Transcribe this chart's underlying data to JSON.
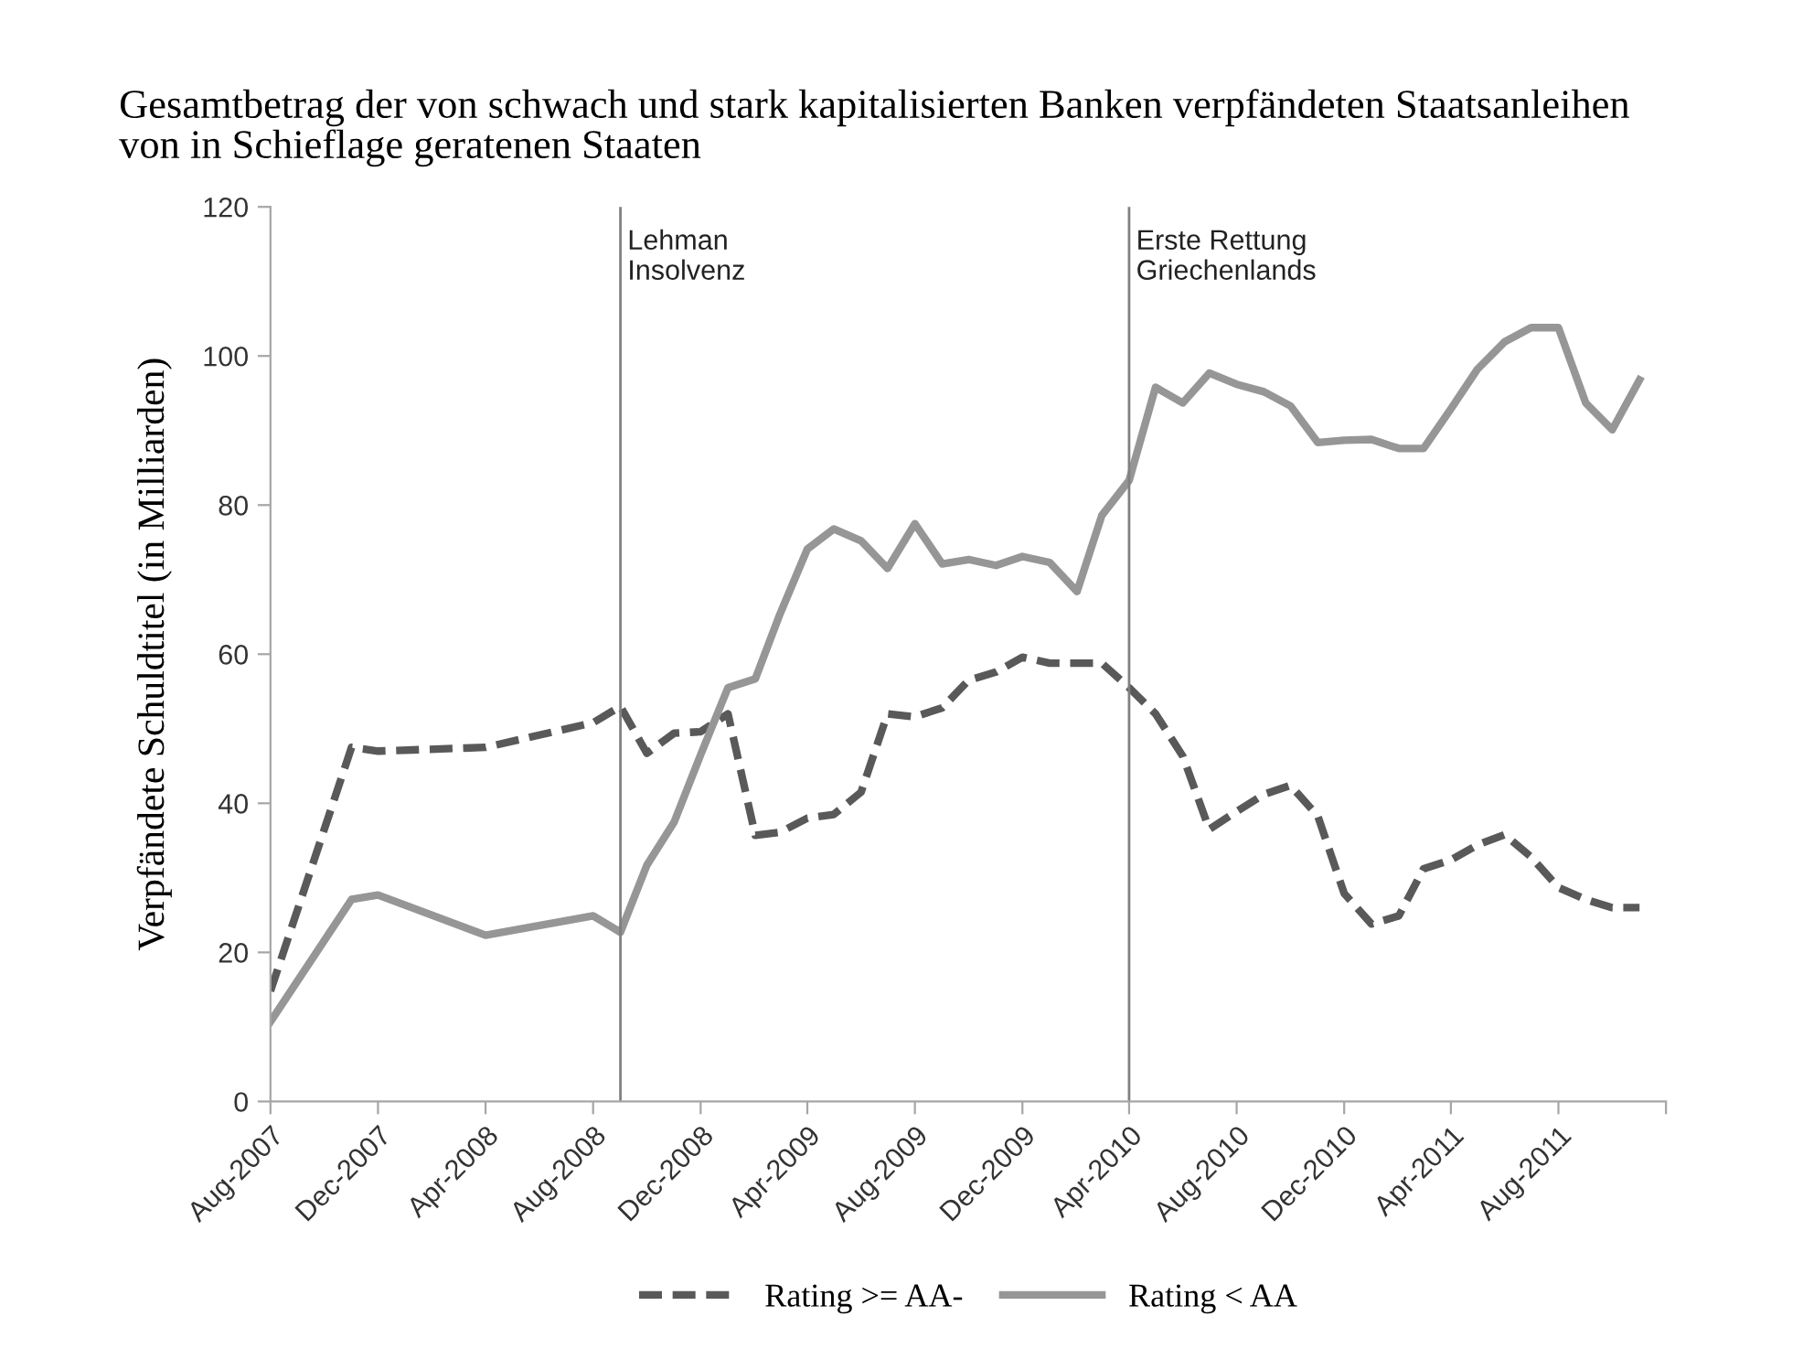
{
  "chart_data": {
    "type": "line",
    "title": "Gesamtbetrag der von schwach und stark kapitalisierten Banken verpfändeten Staatsanleihen\nvon in Schieflage geratenen Staaten",
    "ylabel": "Verpfändete Schuldtitel (in Milliarden)",
    "x": [
      "2007-08",
      "2007-11",
      "2007-12",
      "2008-04",
      "2008-08",
      "2008-09",
      "2008-10",
      "2008-11",
      "2008-12",
      "2009-01",
      "2009-02",
      "2009-03",
      "2009-04",
      "2009-05",
      "2009-06",
      "2009-07",
      "2009-08",
      "2009-09",
      "2009-10",
      "2009-11",
      "2009-12",
      "2010-01",
      "2010-02",
      "2010-03",
      "2010-04",
      "2010-05",
      "2010-06",
      "2010-07",
      "2010-08",
      "2010-09",
      "2010-10",
      "2010-11",
      "2010-12",
      "2011-01",
      "2011-02",
      "2011-03",
      "2011-04",
      "2011-05",
      "2011-06",
      "2011-07",
      "2011-08",
      "2011-09",
      "2011-10",
      "2011-11"
    ],
    "series": [
      {
        "name": "Rating >= AA-",
        "color": "#595959",
        "line_style": "dashed",
        "values": [
          14.8,
          47.5,
          47.0,
          47.5,
          50.8,
          53.0,
          46.7,
          49.4,
          49.6,
          52.0,
          35.7,
          36.1,
          38.0,
          38.5,
          41.5,
          52.0,
          51.6,
          52.8,
          56.5,
          57.6,
          59.6,
          58.8,
          58.8,
          58.8,
          55.5,
          52.0,
          46.3,
          36.5,
          38.9,
          41.2,
          42.4,
          38.3,
          27.9,
          23.8,
          24.9,
          31.2,
          32.4,
          34.4,
          35.8,
          32.8,
          28.7,
          27.1,
          26.0,
          26.0
        ]
      },
      {
        "name": "Rating < AA",
        "color": "#969696",
        "line_style": "solid",
        "values": [
          10.7,
          27.1,
          27.7,
          22.3,
          24.9,
          22.7,
          31.7,
          37.5,
          46.5,
          55.5,
          56.7,
          65.4,
          74.1,
          76.8,
          75.2,
          71.5,
          77.5,
          72.1,
          72.7,
          71.9,
          73.1,
          72.3,
          68.4,
          78.6,
          83.3,
          95.8,
          93.7,
          97.7,
          96.2,
          95.2,
          93.3,
          88.4,
          88.7,
          88.8,
          87.6,
          87.6,
          92.9,
          98.2,
          101.9,
          103.8,
          103.8,
          93.7,
          90.1,
          96.8
        ]
      }
    ],
    "xlim": [
      "2007-08",
      "2011-12"
    ],
    "xticks": [
      {
        "value": "2007-08",
        "label": "Aug-2007"
      },
      {
        "value": "2007-12",
        "label": "Dec-2007"
      },
      {
        "value": "2008-04",
        "label": "Apr-2008"
      },
      {
        "value": "2008-08",
        "label": "Aug-2008"
      },
      {
        "value": "2008-12",
        "label": "Dec-2008"
      },
      {
        "value": "2009-04",
        "label": "Apr-2009"
      },
      {
        "value": "2009-08",
        "label": "Aug-2009"
      },
      {
        "value": "2009-12",
        "label": "Dec-2009"
      },
      {
        "value": "2010-04",
        "label": "Apr-2010"
      },
      {
        "value": "2010-08",
        "label": "Aug-2010"
      },
      {
        "value": "2010-12",
        "label": "Dec-2010"
      },
      {
        "value": "2011-04",
        "label": "Apr-2011"
      },
      {
        "value": "2011-08",
        "label": "Aug-2011"
      },
      {
        "value": "2011-12",
        "label": null
      }
    ],
    "ylim": [
      0,
      120
    ],
    "yticks": [
      0,
      20,
      40,
      60,
      80,
      100,
      120
    ],
    "ref_lines": [
      {
        "axis": "x",
        "value": "2008-09",
        "label": "Lehman\nInsolvenz",
        "color": "#808080"
      },
      {
        "axis": "x",
        "value": "2010-04",
        "label": "Erste Rettung\nGriechenlands",
        "color": "#808080"
      }
    ],
    "grid": false,
    "legend": "bottom"
  }
}
